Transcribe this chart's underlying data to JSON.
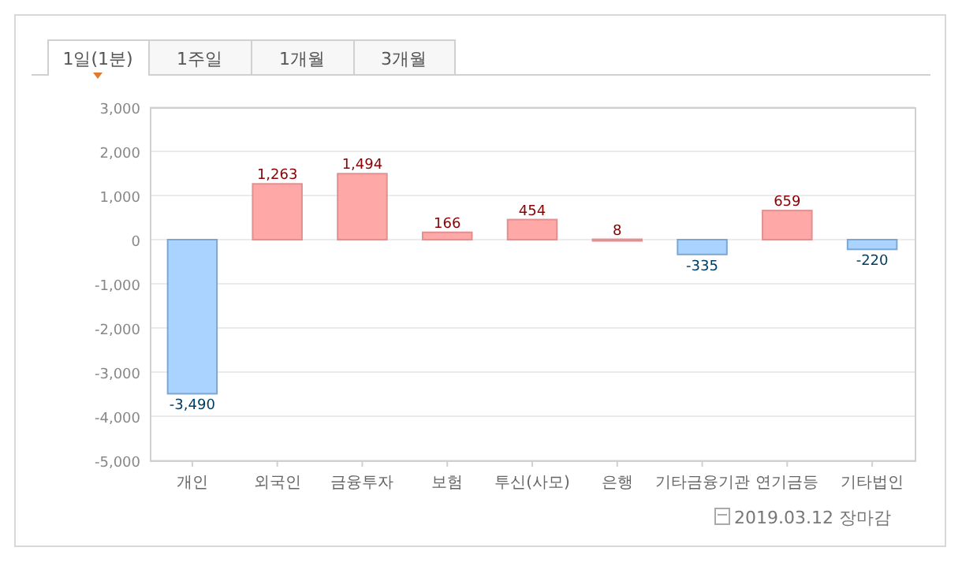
{
  "chart_data": {
    "type": "bar",
    "categories": [
      "개인",
      "외국인",
      "금융투자",
      "보험",
      "투신(사모)",
      "은행",
      "기타금융기관",
      "연기금등",
      "기타법인"
    ],
    "values": [
      -3490,
      1263,
      1494,
      166,
      454,
      8,
      -335,
      659,
      -220
    ],
    "colors": [
      "#aad4ff",
      "#ffa8a8",
      "#ffa8a8",
      "#ffa8a8",
      "#ffa8a8",
      "#ffa8a8",
      "#aad4ff",
      "#ffa8a8",
      "#aad4ff"
    ],
    "value_labels": [
      "-3,490",
      "1,263",
      "1,494",
      "166",
      "454",
      "8",
      "-335",
      "659",
      "-220"
    ],
    "ylim": [
      -5000,
      3000
    ],
    "yticks": [
      {
        "value": -5000,
        "label": "-5,000"
      },
      {
        "value": -4000,
        "label": "-4,000"
      },
      {
        "value": -3000,
        "label": "-3,000"
      },
      {
        "value": -2000,
        "label": "-2,000"
      },
      {
        "value": -1000,
        "label": "-1,000"
      },
      0,
      {
        "value": 1000,
        "label": "1,000"
      },
      {
        "value": 2000,
        "label": "2,000"
      },
      {
        "value": 3000,
        "label": "3,000"
      }
    ],
    "grid": "y",
    "annotations": [
      "1일(1분)",
      "1주일",
      "1개월",
      "3개월",
      "2019.03.12 장마감"
    ]
  }
}
